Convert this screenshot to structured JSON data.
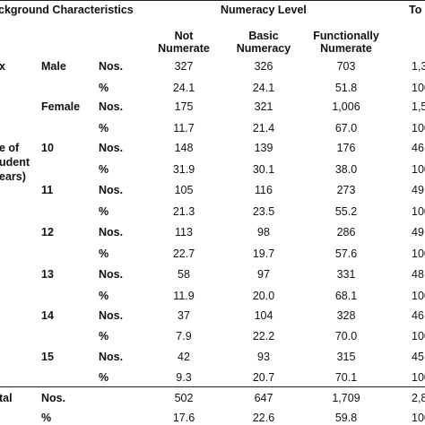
{
  "header": {
    "background_characteristics": "ckground Characteristics",
    "numeracy_level": "Numeracy Level",
    "total": "To",
    "col_not_1": "Not",
    "col_not_2": "Numerate",
    "col_basic_1": "Basic",
    "col_basic_2": "Numeracy",
    "col_func_1": "Functionally",
    "col_func_2": "Numerate"
  },
  "groups": {
    "sex": "x",
    "age_1": "e of",
    "age_2": "udent",
    "age_3": "ears)",
    "total": "tal"
  },
  "rows": [
    {
      "group": "Male",
      "unit": "Nos.",
      "not": "327",
      "basic": "326",
      "func": "703",
      "total": "1,3"
    },
    {
      "group": "",
      "unit": "%",
      "not": "24.1",
      "basic": "24.1",
      "func": "51.8",
      "total": "100"
    },
    {
      "group": "Female",
      "unit": "Nos.",
      "not": "175",
      "basic": "321",
      "func": "1,006",
      "total": "1,5"
    },
    {
      "group": "",
      "unit": "%",
      "not": "11.7",
      "basic": "21.4",
      "func": "67.0",
      "total": "100"
    },
    {
      "group": "10",
      "unit": "Nos.",
      "not": "148",
      "basic": "139",
      "func": "176",
      "total": "46"
    },
    {
      "group": "",
      "unit": "%",
      "not": "31.9",
      "basic": "30.1",
      "func": "38.0",
      "total": "100"
    },
    {
      "group": "11",
      "unit": "Nos.",
      "not": "105",
      "basic": "116",
      "func": "273",
      "total": "49"
    },
    {
      "group": "",
      "unit": "%",
      "not": "21.3",
      "basic": "23.5",
      "func": "55.2",
      "total": "100"
    },
    {
      "group": "12",
      "unit": "Nos.",
      "not": "113",
      "basic": "98",
      "func": "286",
      "total": "49"
    },
    {
      "group": "",
      "unit": "%",
      "not": "22.7",
      "basic": "19.7",
      "func": "57.6",
      "total": "100"
    },
    {
      "group": "13",
      "unit": "Nos.",
      "not": "58",
      "basic": "97",
      "func": "331",
      "total": "48"
    },
    {
      "group": "",
      "unit": "%",
      "not": "11.9",
      "basic": "20.0",
      "func": "68.1",
      "total": "100"
    },
    {
      "group": "14",
      "unit": "Nos.",
      "not": "37",
      "basic": "104",
      "func": "328",
      "total": "46"
    },
    {
      "group": "",
      "unit": "%",
      "not": "7.9",
      "basic": "22.2",
      "func": "70.0",
      "total": "100"
    },
    {
      "group": "15",
      "unit": "Nos.",
      "not": "42",
      "basic": "93",
      "func": "315",
      "total": "45"
    },
    {
      "group": "",
      "unit": "%",
      "not": "9.3",
      "basic": "20.7",
      "func": "70.1",
      "total": "100"
    },
    {
      "group": "",
      "unit": "Nos.",
      "not": "502",
      "basic": "647",
      "func": "1,709",
      "total": "2,8"
    },
    {
      "group": "",
      "unit": "%",
      "not": "17.6",
      "basic": "22.6",
      "func": "59.8",
      "total": "100"
    }
  ]
}
